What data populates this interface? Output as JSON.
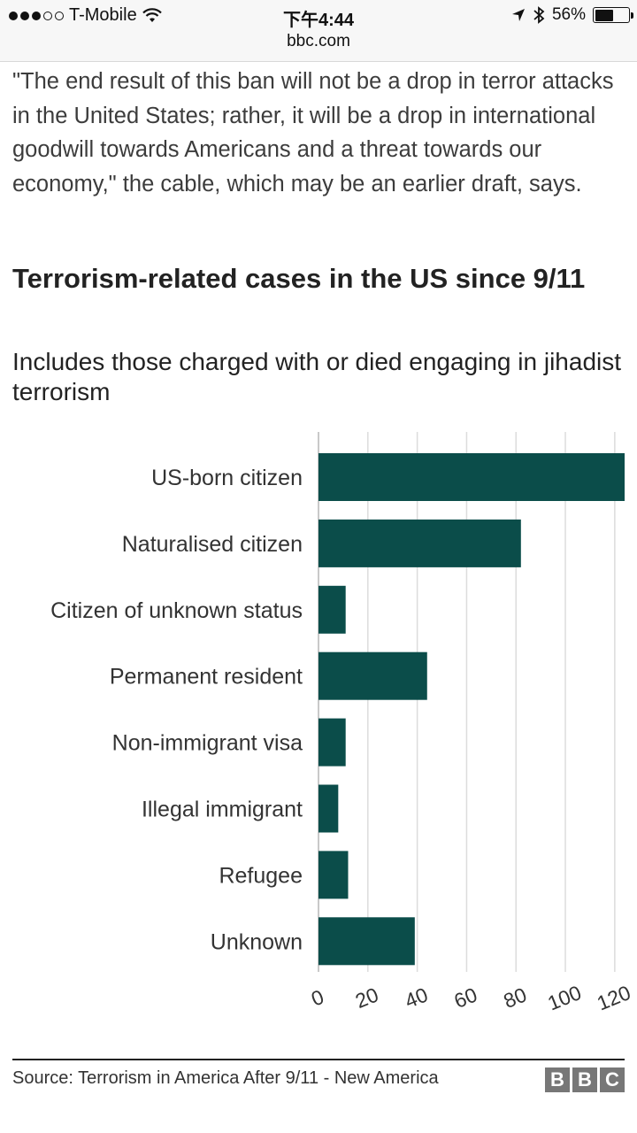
{
  "status_bar": {
    "carrier": "T-Mobile",
    "time": "下午4:44",
    "url": "bbc.com",
    "battery_percent": "56%",
    "battery_level": 0.56,
    "icons": [
      "signal-dots-icon",
      "wifi-icon",
      "location-arrow-icon",
      "bluetooth-icon",
      "battery-icon"
    ]
  },
  "article": {
    "quote": "\"The end result of this ban will not be a drop in terror attacks in the United States; rather, it will be a drop in international goodwill towards Americans and a threat towards our economy,\" the cable, which may be an earlier draft, says."
  },
  "chart_data": {
    "type": "bar",
    "orientation": "horizontal",
    "title": "Terrorism-related cases in the US since 9/11",
    "subtitle": "Includes those charged with or died engaging in jihadist terrorism",
    "categories": [
      "US-born citizen",
      "Naturalised citizen",
      "Citizen of unknown status",
      "Permanent resident",
      "Non-immigrant visa",
      "Illegal immigrant",
      "Refugee",
      "Unknown"
    ],
    "values": [
      124,
      82,
      11,
      44,
      11,
      8,
      12,
      39
    ],
    "xlim": [
      0,
      124
    ],
    "xticks": [
      0,
      20,
      40,
      60,
      80,
      100,
      120
    ],
    "grid": true,
    "bar_color": "#0b4d4a",
    "grid_color": "#dcdcdc"
  },
  "footer": {
    "source": "Source: Terrorism in America After 9/11 - New America",
    "logo_letters": [
      "B",
      "B",
      "C"
    ]
  }
}
